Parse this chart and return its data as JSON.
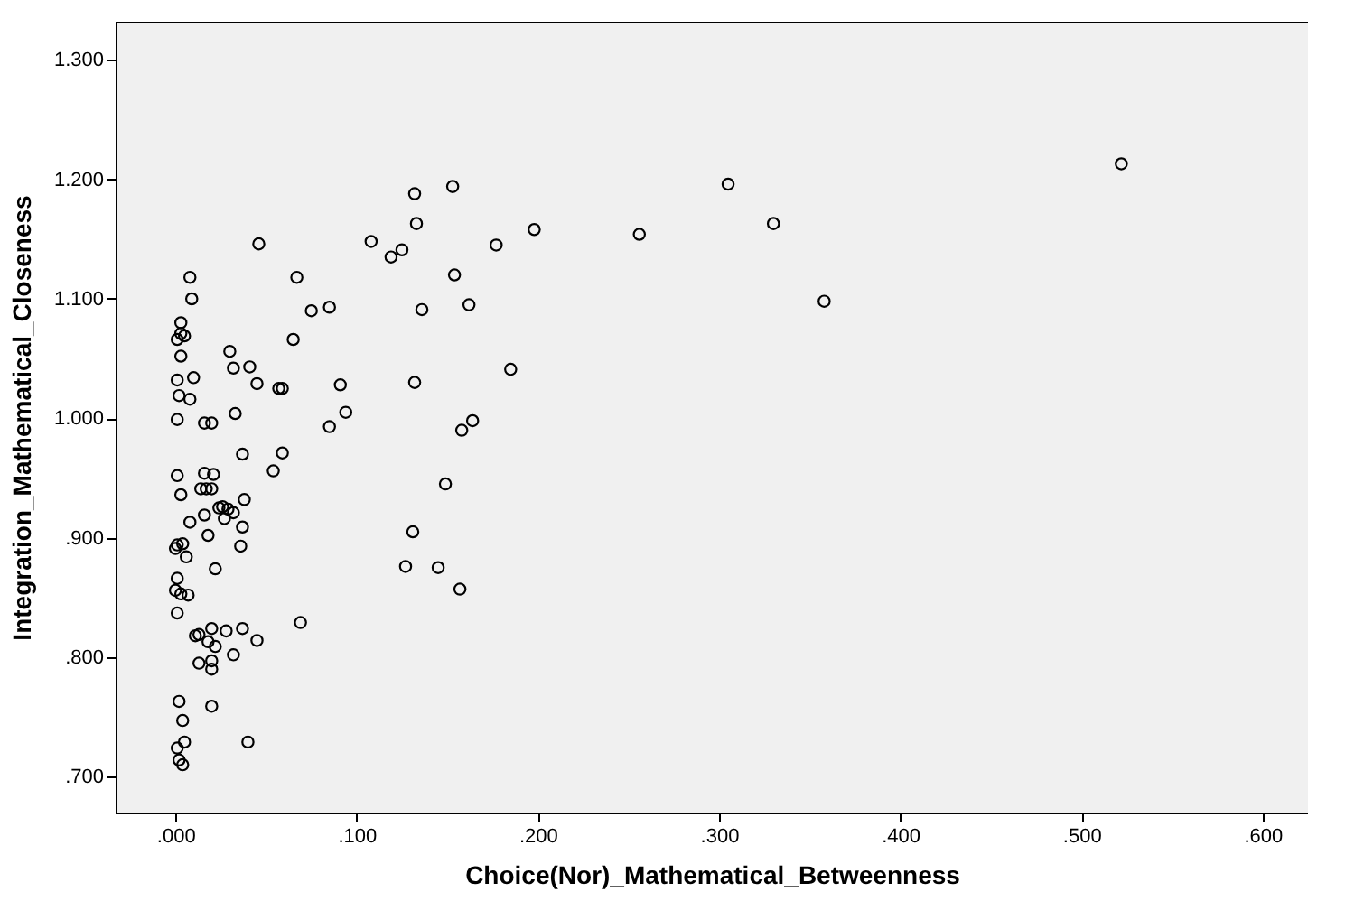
{
  "chart_data": {
    "type": "scatter",
    "xlabel": "Choice(Nor)_Mathematical_Betweenness",
    "ylabel": "Integration_Mathematical_Closeness",
    "marker": "circle",
    "grid": false,
    "series": [
      {
        "color": "#000000",
        "x": [
          0.522,
          0.256,
          0.305,
          0.33,
          0.358,
          0.132,
          0.153,
          0.133,
          0.108,
          0.125,
          0.119,
          0.177,
          0.198,
          0.067,
          0.154,
          0.075,
          0.085,
          0.136,
          0.162,
          0.065,
          0.059,
          0.091,
          0.132,
          0.185,
          0.094,
          0.085,
          0.164,
          0.158,
          0.059,
          0.149,
          0.131,
          0.127,
          0.145,
          0.157,
          0.069,
          0.046,
          0.008,
          0.009,
          0.003,
          0.003,
          0.005,
          0.001,
          0.003,
          0.03,
          0.032,
          0.041,
          0.001,
          0.01,
          0.045,
          0.057,
          0.002,
          0.008,
          0.033,
          0.001,
          0.016,
          0.02,
          0.037,
          0.054,
          0.001,
          0.016,
          0.021,
          0.003,
          0.014,
          0.017,
          0.02,
          0.038,
          0.008,
          0.016,
          0.024,
          0.026,
          0.029,
          0.027,
          0.032,
          0.037,
          0.018,
          0.036,
          0.0,
          0.001,
          0.004,
          0.006,
          0.022,
          0.001,
          0.0,
          0.003,
          0.007,
          0.001,
          0.011,
          0.013,
          0.02,
          0.028,
          0.037,
          0.045,
          0.018,
          0.022,
          0.032,
          0.013,
          0.02,
          0.02,
          0.002,
          0.02,
          0.004,
          0.04,
          0.005,
          0.001,
          0.002,
          0.004
        ],
        "values": [
          1.213,
          1.154,
          1.196,
          1.163,
          1.098,
          1.188,
          1.194,
          1.163,
          1.148,
          1.141,
          1.135,
          1.145,
          1.158,
          1.118,
          1.12,
          1.09,
          1.093,
          1.091,
          1.095,
          1.066,
          1.025,
          1.028,
          1.03,
          1.041,
          1.005,
          0.993,
          0.998,
          0.99,
          0.971,
          0.945,
          0.905,
          0.876,
          0.875,
          0.857,
          0.829,
          1.146,
          1.118,
          1.1,
          1.08,
          1.071,
          1.069,
          1.066,
          1.052,
          1.056,
          1.042,
          1.043,
          1.032,
          1.034,
          1.029,
          1.025,
          1.019,
          1.016,
          1.004,
          0.999,
          0.996,
          0.996,
          0.97,
          0.956,
          0.952,
          0.954,
          0.953,
          0.936,
          0.941,
          0.941,
          0.941,
          0.932,
          0.913,
          0.919,
          0.925,
          0.926,
          0.924,
          0.916,
          0.921,
          0.909,
          0.902,
          0.893,
          0.891,
          0.894,
          0.895,
          0.884,
          0.874,
          0.866,
          0.856,
          0.853,
          0.852,
          0.837,
          0.818,
          0.819,
          0.824,
          0.822,
          0.824,
          0.814,
          0.813,
          0.809,
          0.802,
          0.795,
          0.797,
          0.79,
          0.763,
          0.759,
          0.747,
          0.729,
          0.729,
          0.724,
          0.714,
          0.71
        ]
      }
    ],
    "xlim": [
      -0.033,
      0.625
    ],
    "ylim": [
      0.67,
      1.332
    ],
    "xticks": [
      {
        "value": 0,
        "label": ".000"
      },
      {
        "value": 0.1,
        "label": ".100"
      },
      {
        "value": 0.2,
        "label": ".200"
      },
      {
        "value": 0.3,
        "label": ".300"
      },
      {
        "value": 0.4,
        "label": ".400"
      },
      {
        "value": 0.5,
        "label": ".500"
      },
      {
        "value": 0.6,
        "label": ".600"
      }
    ],
    "yticks": [
      {
        "value": 0.7,
        "label": ".700"
      },
      {
        "value": 0.8,
        "label": ".800"
      },
      {
        "value": 0.9,
        "label": ".900"
      },
      {
        "value": 1.0,
        "label": "1.000"
      },
      {
        "value": 1.1,
        "label": "1.100"
      },
      {
        "value": 1.2,
        "label": "1.200"
      },
      {
        "value": 1.3,
        "label": "1.300"
      }
    ]
  }
}
